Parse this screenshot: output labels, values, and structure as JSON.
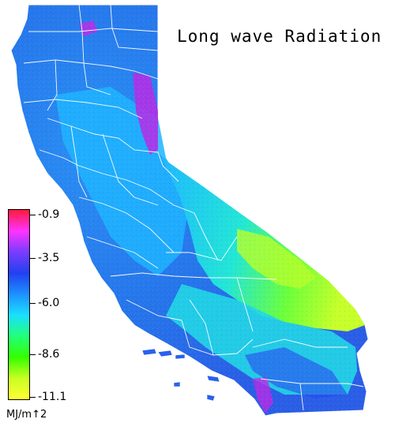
{
  "map": {
    "title": "Long wave Radiation",
    "units": "MJ/m↑2",
    "legend": {
      "labels": [
        "-0.9",
        "-3.5",
        "-6.0",
        "-8.6",
        "-11.1"
      ],
      "colors": [
        "#ff1a3c",
        "#ff33ff",
        "#7a3cff",
        "#2240f0",
        "#1e90ff",
        "#1ae0ff",
        "#22ff7a",
        "#33ff00",
        "#c8ff22",
        "#ffff33"
      ]
    },
    "fill_colors": {
      "low_west": "#2a7cf0",
      "central": "#1ac8ff",
      "east_desert": "#7cff2a",
      "sierra_high": "#c02ae6",
      "deep_blue": "#2a3cf0"
    }
  }
}
